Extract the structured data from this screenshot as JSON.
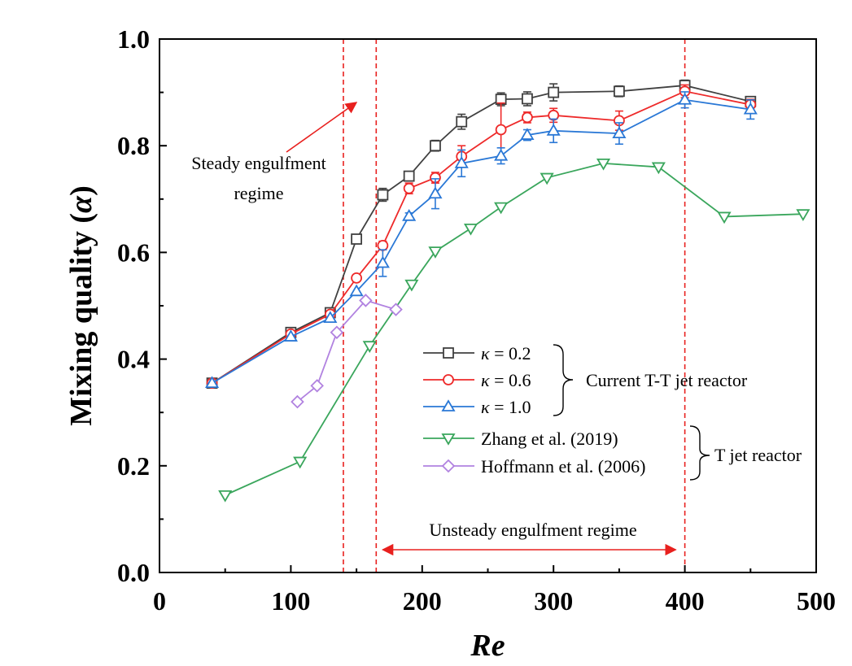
{
  "chart_data": {
    "type": "line",
    "xlabel": "Re",
    "ylabel": "Mixing quality (",
    "ylabel_symbol": "α",
    "ylabel_close": ")",
    "xlim": [
      0,
      500
    ],
    "ylim": [
      0.0,
      1.0
    ],
    "x_ticks": [
      0,
      100,
      200,
      300,
      400,
      500
    ],
    "y_ticks": [
      0.0,
      0.2,
      0.4,
      0.6,
      0.8,
      1.0
    ],
    "x_tick_labels": [
      "0",
      "100",
      "200",
      "300",
      "400",
      "500"
    ],
    "y_tick_labels": [
      "0.0",
      "0.2",
      "0.4",
      "0.6",
      "0.8",
      "1.0"
    ],
    "grid": false,
    "legend_position": "center-right",
    "series": [
      {
        "name_symbol": "κ",
        "name_value": " = 0.2",
        "color": "#404040",
        "marker": "square",
        "x": [
          40,
          100,
          130,
          150,
          170,
          190,
          210,
          230,
          260,
          280,
          300,
          350,
          400,
          450
        ],
        "y": [
          0.355,
          0.45,
          0.487,
          0.625,
          0.708,
          0.743,
          0.8,
          0.845,
          0.887,
          0.888,
          0.9,
          0.902,
          0.913,
          0.883
        ],
        "err": [
          0,
          0,
          0,
          0,
          0.012,
          0.006,
          0.01,
          0.014,
          0.012,
          0.013,
          0.016,
          0.01,
          0.01,
          0
        ]
      },
      {
        "name_symbol": "κ",
        "name_value": " = 0.6",
        "color": "#ee2a2a",
        "marker": "circle",
        "x": [
          40,
          100,
          130,
          150,
          170,
          190,
          210,
          230,
          260,
          280,
          300,
          350,
          400,
          450
        ],
        "y": [
          0.355,
          0.447,
          0.484,
          0.552,
          0.613,
          0.72,
          0.74,
          0.78,
          0.83,
          0.853,
          0.857,
          0.847,
          0.902,
          0.877
        ],
        "err": [
          0,
          0,
          0,
          0,
          0.008,
          0.01,
          0.01,
          0.02,
          0.05,
          0.01,
          0.013,
          0.018,
          0.012,
          0.01
        ]
      },
      {
        "name_symbol": "κ",
        "name_value": " = 1.0",
        "color": "#2a78d6",
        "marker": "triangle-up",
        "x": [
          40,
          100,
          130,
          150,
          170,
          190,
          210,
          230,
          260,
          280,
          300,
          350,
          400,
          450
        ],
        "y": [
          0.355,
          0.442,
          0.477,
          0.527,
          0.58,
          0.668,
          0.71,
          0.767,
          0.781,
          0.82,
          0.828,
          0.823,
          0.886,
          0.868
        ],
        "err": [
          0,
          0,
          0,
          0,
          0.025,
          0.006,
          0.028,
          0.025,
          0.015,
          0.01,
          0.022,
          0.02,
          0.015,
          0.018
        ]
      },
      {
        "name": "Zhang et al. (2019)",
        "color": "#3aa65c",
        "marker": "triangle-down",
        "x": [
          50,
          107,
          160,
          192,
          210,
          237,
          260,
          295,
          338,
          380,
          430,
          490
        ],
        "y": [
          0.145,
          0.208,
          0.425,
          0.54,
          0.602,
          0.645,
          0.685,
          0.74,
          0.767,
          0.76,
          0.667,
          0.672
        ],
        "err": []
      },
      {
        "name": "Hoffmann et al. (2006)",
        "color": "#b182e0",
        "marker": "diamond",
        "x": [
          105,
          120,
          135,
          157,
          180
        ],
        "y": [
          0.32,
          0.35,
          0.45,
          0.51,
          0.493
        ],
        "err": []
      }
    ],
    "vlines": [
      140,
      165,
      400
    ],
    "vline_color": "#e8201e",
    "annotations": {
      "steady_line1": "Steady engulfment",
      "steady_line2": "regime",
      "unsteady": "Unsteady engulfment regime",
      "group1": "Current T-T jet reactor",
      "group2": "T jet reactor"
    }
  }
}
